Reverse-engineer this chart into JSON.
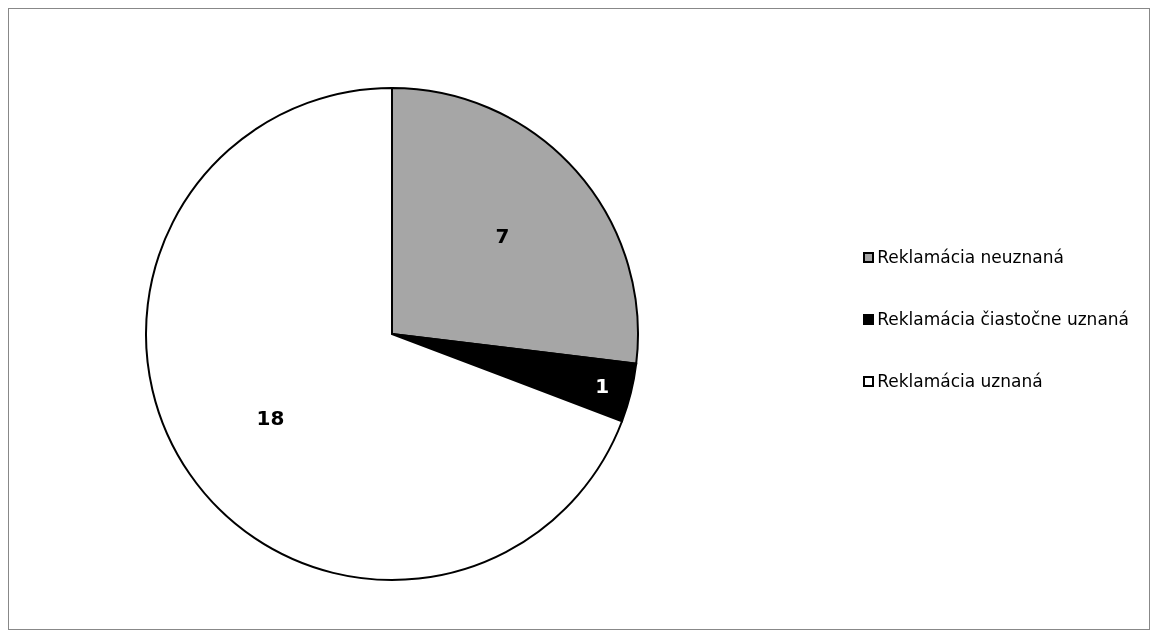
{
  "chart_data": {
    "type": "pie",
    "categories": [
      "Reklamácia neuznaná",
      "Reklamácia čiastočne uznaná",
      "Reklamácia uznaná"
    ],
    "values": [
      7,
      1,
      18
    ],
    "colors": [
      "#a6a6a6",
      "#000000",
      "#ffffff"
    ],
    "data_labels": true,
    "legend": "right"
  }
}
